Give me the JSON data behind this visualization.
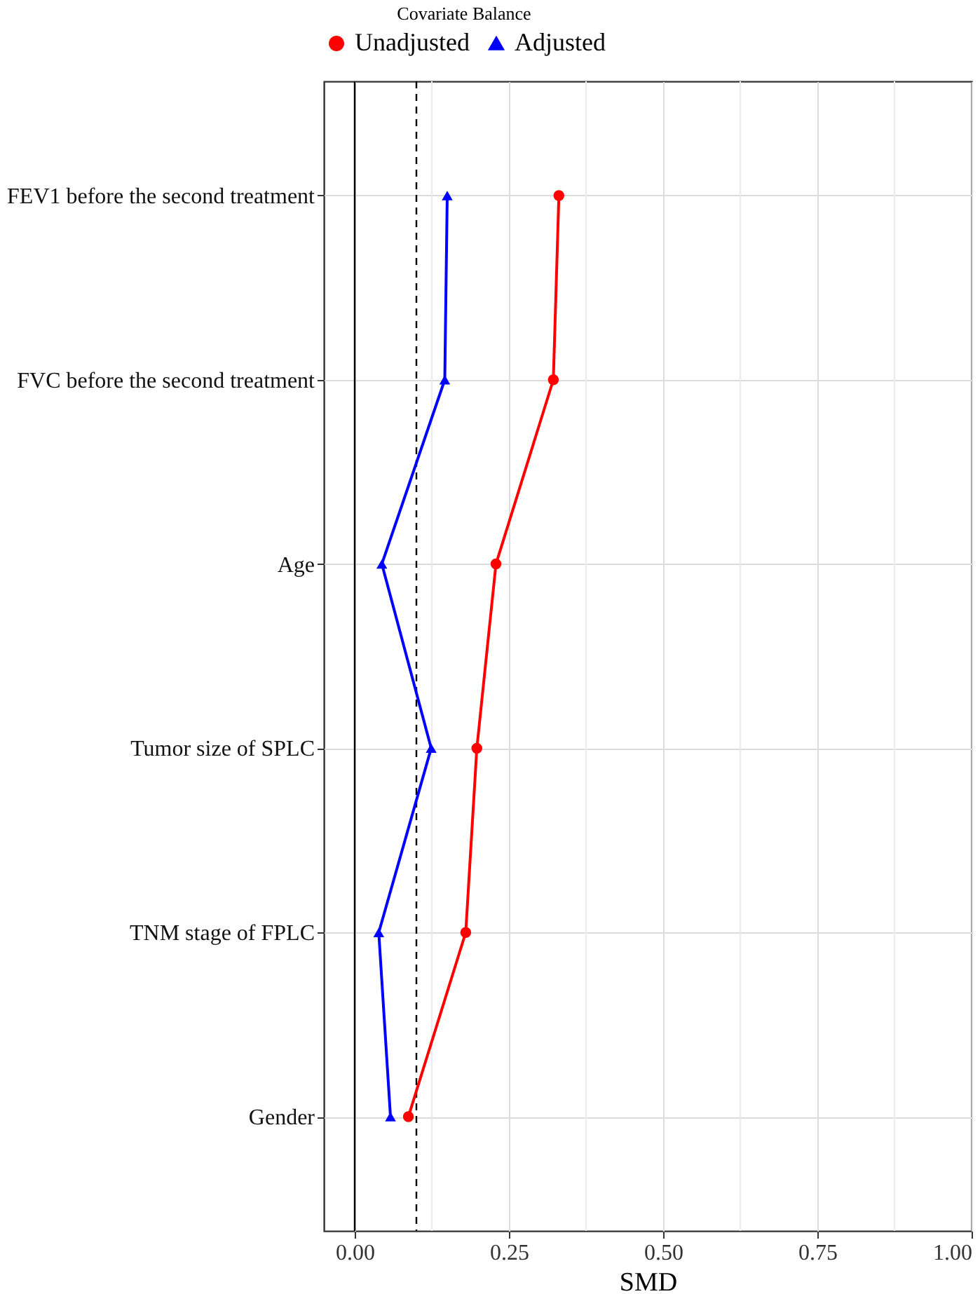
{
  "chart_data": {
    "type": "line",
    "orientation": "horizontal",
    "categories": [
      "FEV1 before the second treatment",
      "FVC before the second treatment",
      "Age",
      "Tumor size of SPLC",
      "TNM stage of FPLC",
      "Gender"
    ],
    "series": [
      {
        "name": "Unadjusted",
        "color": "#ff0000",
        "marker": "circle",
        "values": [
          0.331,
          0.322,
          0.229,
          0.198,
          0.18,
          0.087
        ]
      },
      {
        "name": "Adjusted",
        "color": "#0000ff",
        "marker": "triangle",
        "values": [
          0.15,
          0.146,
          0.044,
          0.124,
          0.039,
          0.058
        ]
      }
    ],
    "xlabel": "SMD",
    "legend_title": "Covariate Balance",
    "legend": "top",
    "xlim": [
      -0.05,
      1.0
    ],
    "xticks": [
      {
        "value": 0,
        "label": "0.00"
      },
      {
        "value": 0.25,
        "label": "0.25"
      },
      {
        "value": 0.5,
        "label": "0.50"
      },
      {
        "value": 0.75,
        "label": "0.75"
      },
      {
        "value": 1.0,
        "label": "1.00"
      }
    ],
    "ref_lines": [
      {
        "axis": "x",
        "value": 0,
        "color": "#000000",
        "line_style": "solid"
      },
      {
        "axis": "x",
        "value": 0.1,
        "color": "#000000",
        "line_style": "dashed"
      }
    ],
    "grid": true
  }
}
